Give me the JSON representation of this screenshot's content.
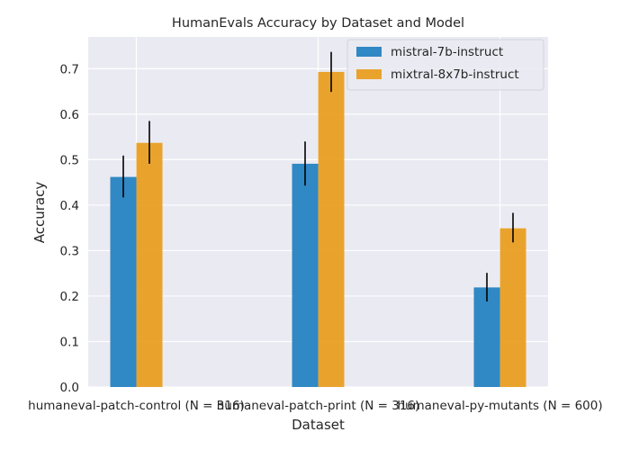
{
  "chart_data": {
    "type": "bar",
    "title": "HumanEvals Accuracy by Dataset and Model",
    "xlabel": "Dataset",
    "ylabel": "Accuracy",
    "categories": [
      "humaneval-patch-control (N = 316)",
      "humaneval-patch-print (N = 316)",
      "humaneval-py-mutants (N = 600)"
    ],
    "series": [
      {
        "name": "mistral-7b-instruct",
        "color": "#1f7fc0",
        "values": [
          0.462,
          0.491,
          0.219
        ],
        "err_low": [
          0.417,
          0.443,
          0.188
        ],
        "err_high": [
          0.509,
          0.54,
          0.251
        ]
      },
      {
        "name": "mixtral-8x7b-instruct",
        "color": "#e89c1c",
        "values": [
          0.537,
          0.693,
          0.349
        ],
        "err_low": [
          0.491,
          0.649,
          0.318
        ],
        "err_high": [
          0.585,
          0.737,
          0.383
        ]
      }
    ],
    "ylim": [
      0,
      0.77
    ],
    "yticks": [
      0.0,
      0.1,
      0.2,
      0.3,
      0.4,
      0.5,
      0.6,
      0.7
    ],
    "ytick_labels": [
      "0.0",
      "0.1",
      "0.2",
      "0.3",
      "0.4",
      "0.5",
      "0.6",
      "0.7"
    ],
    "grid": true,
    "legend_position": "top-right",
    "plot_background": "#eaeaf2"
  }
}
